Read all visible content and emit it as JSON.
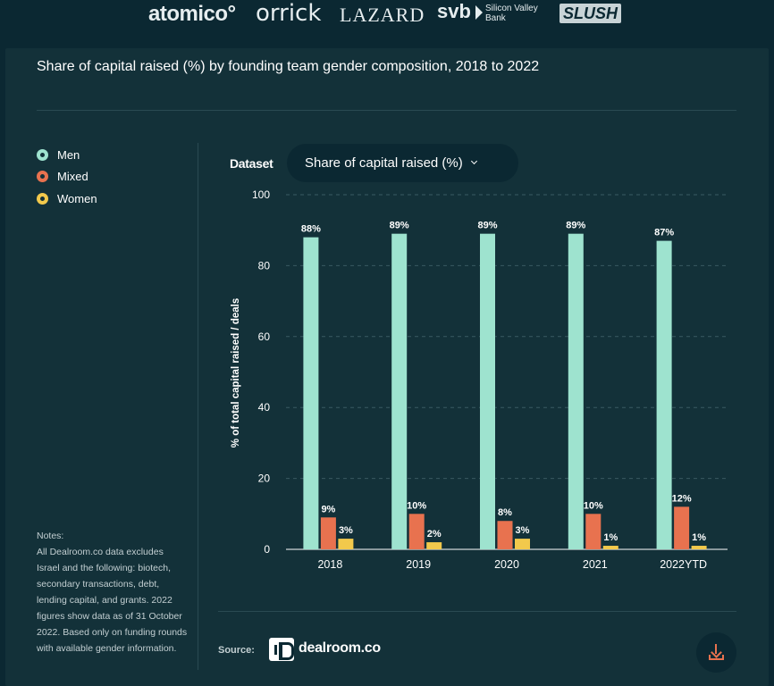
{
  "logos": {
    "atomico": "atomico°",
    "orrick": "orrick",
    "lazard": "LAZARD",
    "svb": "svb",
    "svb_sub_line1": "Silicon Valley",
    "svb_sub_line2": "Bank",
    "slush": "SLUSH"
  },
  "title": "Share of capital raised (%) by founding team gender composition, 2018 to 2022",
  "legend": [
    {
      "label": "Men",
      "color": "#9ee3cf"
    },
    {
      "label": "Mixed",
      "color": "#e8724f"
    },
    {
      "label": "Women",
      "color": "#f2c94c"
    }
  ],
  "dataset": {
    "label": "Dataset",
    "selected": "Share of capital raised (%)"
  },
  "notes": {
    "heading": "Notes:",
    "body": "All Dealroom.co data excludes Israel and the following: biotech, secondary transactions, debt, lending capital, and grants. 2022 figures show data as of 31 October 2022. Based only on funding rounds with available gender information."
  },
  "source": {
    "label": "Source:",
    "brand": "dealroom.co"
  },
  "icons": {
    "download": "download-icon",
    "dropdown": "chevron-down-icon"
  },
  "chart_data": {
    "type": "bar",
    "categories": [
      "2018",
      "2019",
      "2020",
      "2021",
      "2022YTD"
    ],
    "series": [
      {
        "name": "Men",
        "color": "#9ee3cf",
        "values": [
          88,
          89,
          89,
          89,
          87
        ],
        "labels": [
          "88%",
          "89%",
          "89%",
          "89%",
          "87%"
        ]
      },
      {
        "name": "Mixed",
        "color": "#e8724f",
        "values": [
          9,
          10,
          8,
          10,
          12
        ],
        "labels": [
          "9%",
          "10%",
          "8%",
          "10%",
          "12%"
        ]
      },
      {
        "name": "Women",
        "color": "#f2c94c",
        "values": [
          3,
          2,
          3,
          1,
          1
        ],
        "labels": [
          "3%",
          "2%",
          "3%",
          "1%",
          "1%"
        ]
      }
    ],
    "ylabel": "% of total capital raised / deals",
    "ylim": [
      0,
      100
    ],
    "yticks": [
      0,
      20,
      40,
      60,
      80,
      100
    ],
    "grid": true,
    "legend": "left"
  }
}
